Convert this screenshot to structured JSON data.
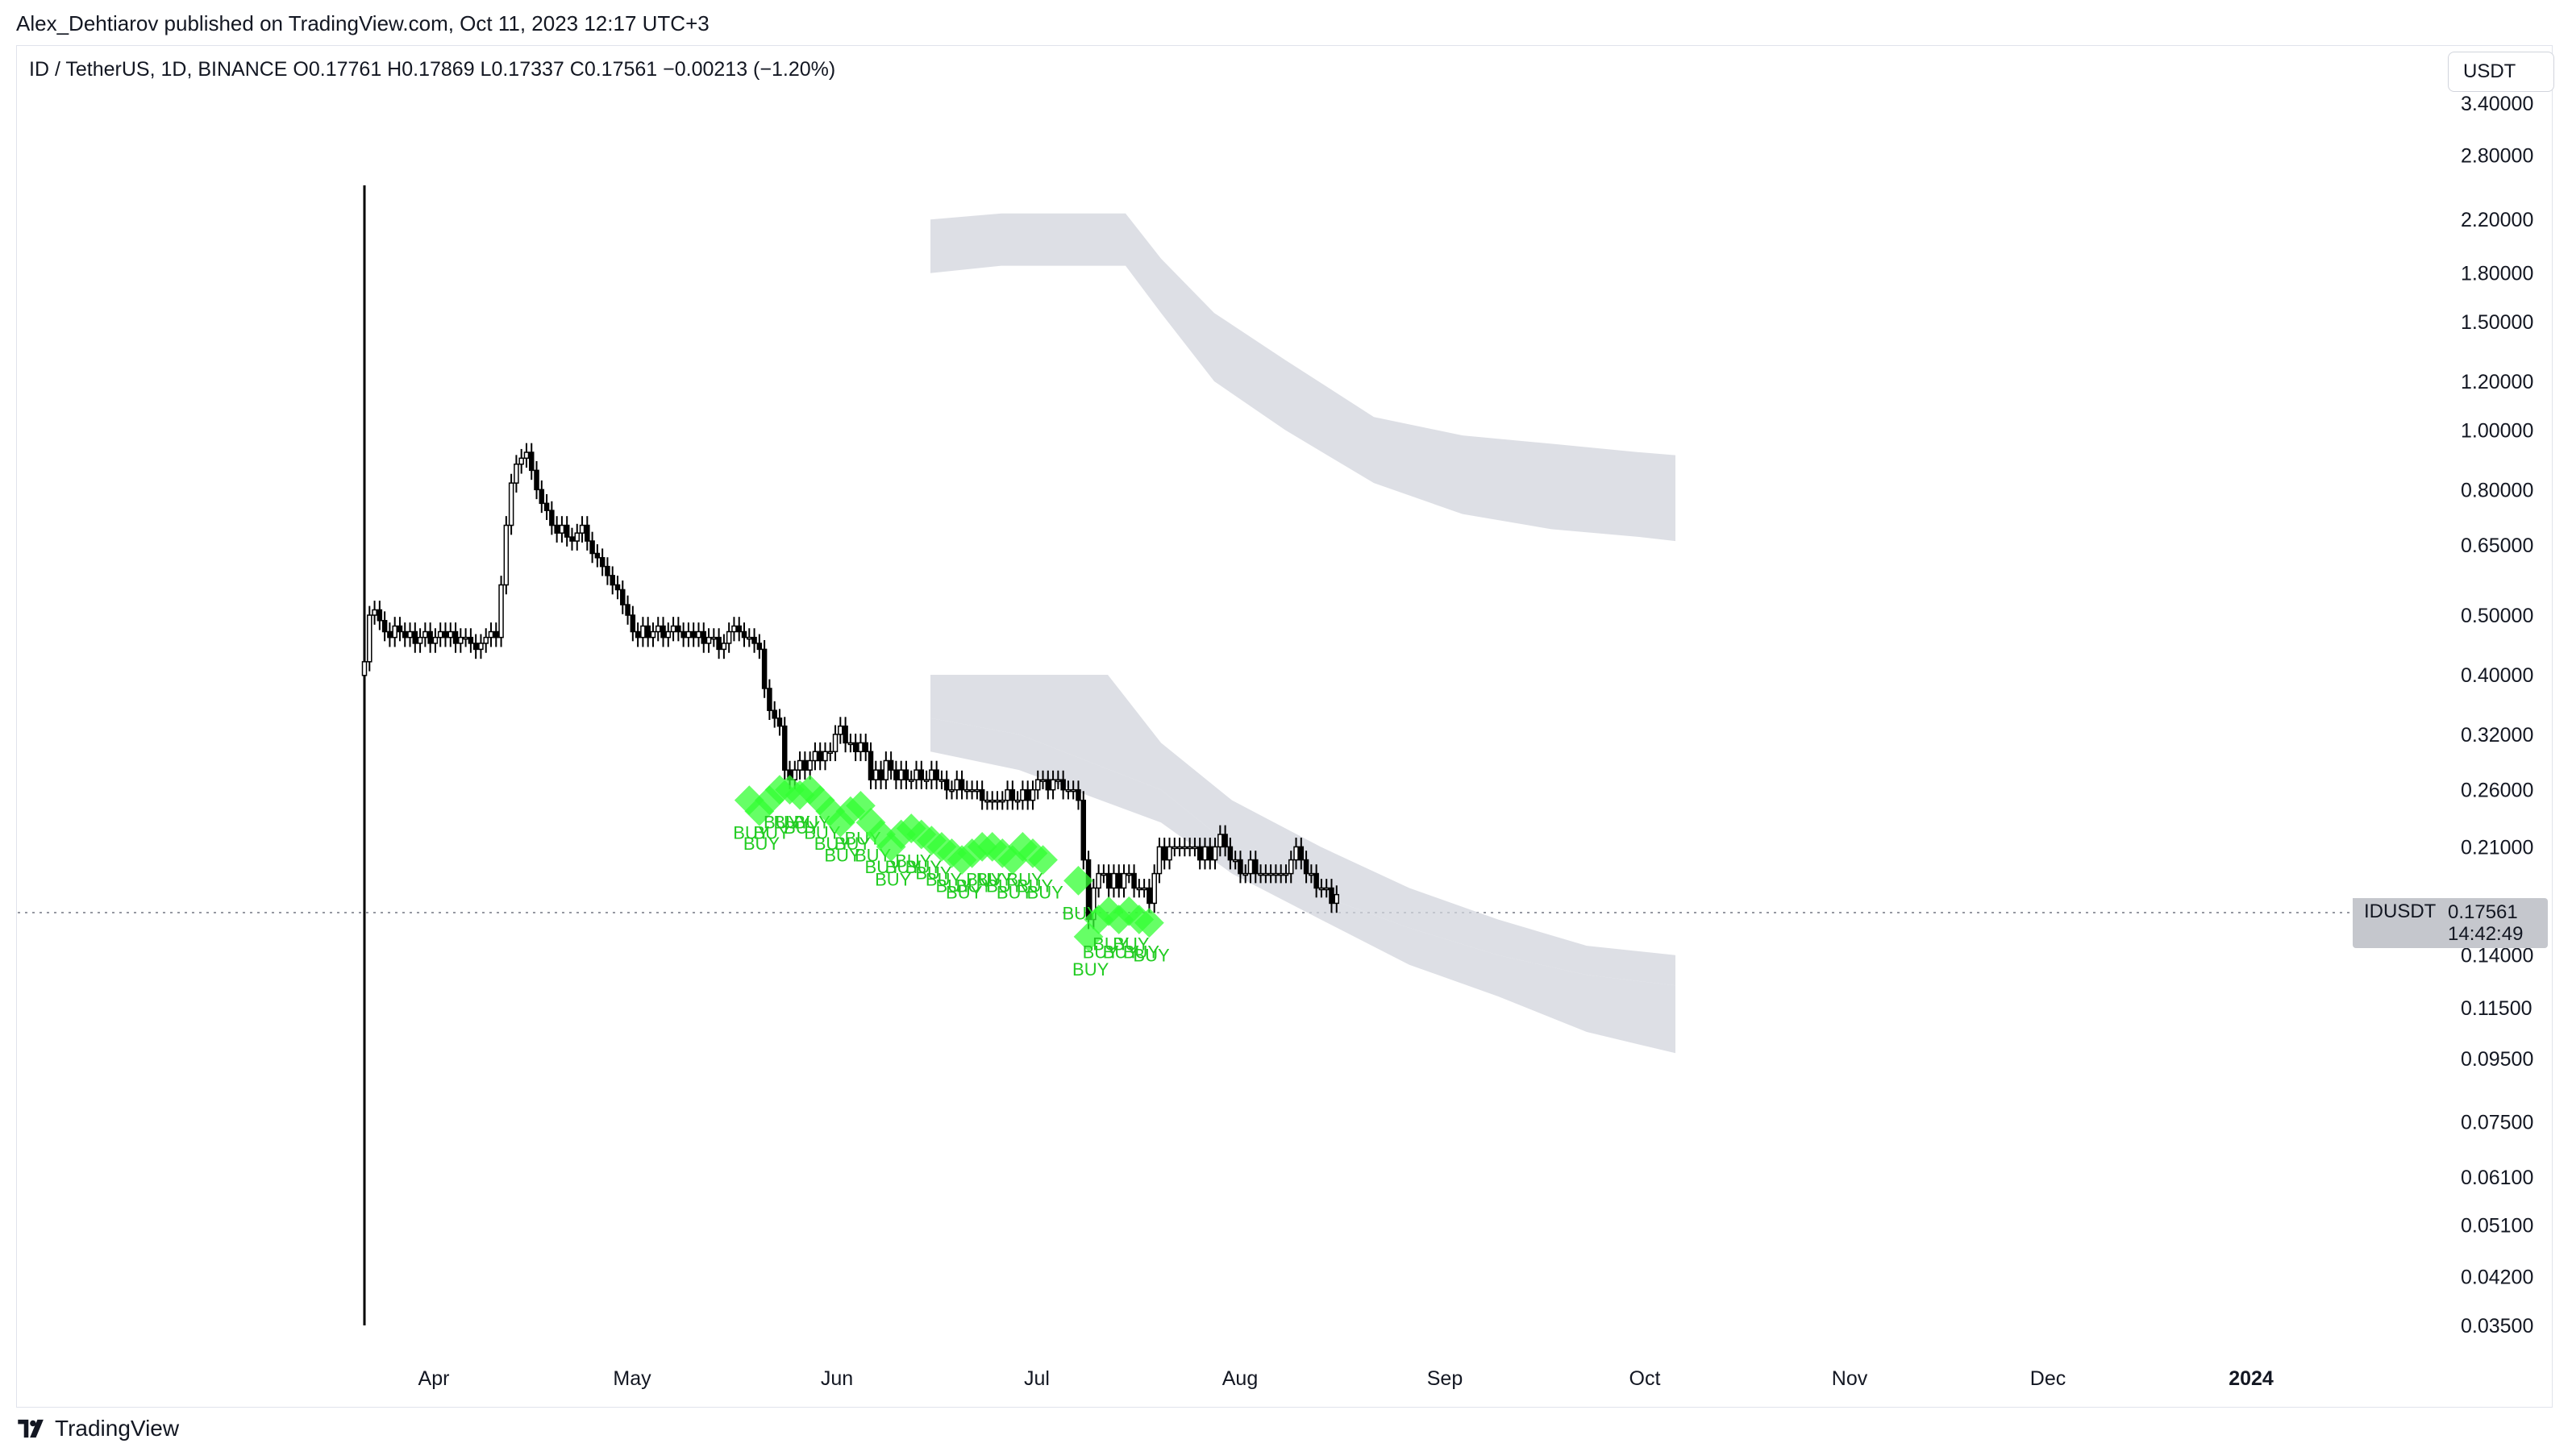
{
  "header": {
    "published": "Alex_Dehtiarov published on TradingView.com, Oct 11, 2023 12:17 UTC+3",
    "legend": "ID / TetherUS, 1D, BINANCE  O0.17761  H0.17869  L0.17337  C0.17561  −0.00213 (−1.20%)"
  },
  "currency_button": "USDT",
  "last_price": {
    "symbol": "IDUSDT",
    "price": "0.17561",
    "countdown": "14:42:49"
  },
  "footer": {
    "brand": "TradingView"
  },
  "colors": {
    "candle": "#000000",
    "band": "#d1d4dc",
    "buy_marker": "#33ff33",
    "buy_text": "#22cc22",
    "axis_text": "#131722"
  },
  "chart_data": {
    "type": "candlestick",
    "y_scale": "log",
    "y_ticks": [
      "3.40000",
      "2.80000",
      "2.20000",
      "1.80000",
      "1.50000",
      "1.20000",
      "1.00000",
      "0.80000",
      "0.65000",
      "0.50000",
      "0.40000",
      "0.32000",
      "0.26000",
      "0.21000",
      "0.14000",
      "0.11500",
      "0.09500",
      "0.07500",
      "0.06100",
      "0.05100",
      "0.04200",
      "0.03500"
    ],
    "x_ticks": [
      "Apr",
      "May",
      "Jun",
      "Jul",
      "Aug",
      "Sep",
      "Oct",
      "Nov",
      "Dec",
      "2024"
    ],
    "ylim": [
      0.035,
      3.4
    ],
    "close_path": [
      [
        0,
        0.42
      ],
      [
        1,
        0.5
      ],
      [
        2,
        0.51
      ],
      [
        3,
        0.49
      ],
      [
        4,
        0.47
      ],
      [
        5,
        0.46
      ],
      [
        6,
        0.48
      ],
      [
        7,
        0.47
      ],
      [
        8,
        0.46
      ],
      [
        9,
        0.47
      ],
      [
        10,
        0.45
      ],
      [
        11,
        0.46
      ],
      [
        12,
        0.47
      ],
      [
        13,
        0.45
      ],
      [
        14,
        0.46
      ],
      [
        15,
        0.47
      ],
      [
        16,
        0.46
      ],
      [
        17,
        0.47
      ],
      [
        18,
        0.45
      ],
      [
        19,
        0.46
      ],
      [
        20,
        0.46
      ],
      [
        21,
        0.45
      ],
      [
        22,
        0.44
      ],
      [
        23,
        0.45
      ],
      [
        24,
        0.46
      ],
      [
        25,
        0.47
      ],
      [
        26,
        0.46
      ],
      [
        27,
        0.56
      ],
      [
        28,
        0.7
      ],
      [
        29,
        0.82
      ],
      [
        30,
        0.88
      ],
      [
        31,
        0.9
      ],
      [
        32,
        0.92
      ],
      [
        33,
        0.86
      ],
      [
        34,
        0.8
      ],
      [
        35,
        0.76
      ],
      [
        36,
        0.74
      ],
      [
        37,
        0.7
      ],
      [
        38,
        0.68
      ],
      [
        39,
        0.7
      ],
      [
        40,
        0.67
      ],
      [
        41,
        0.66
      ],
      [
        42,
        0.68
      ],
      [
        43,
        0.7
      ],
      [
        44,
        0.66
      ],
      [
        45,
        0.63
      ],
      [
        46,
        0.62
      ],
      [
        47,
        0.6
      ],
      [
        48,
        0.58
      ],
      [
        49,
        0.56
      ],
      [
        50,
        0.55
      ],
      [
        51,
        0.52
      ],
      [
        52,
        0.5
      ],
      [
        53,
        0.47
      ],
      [
        54,
        0.46
      ],
      [
        55,
        0.48
      ],
      [
        56,
        0.46
      ],
      [
        57,
        0.47
      ],
      [
        58,
        0.48
      ],
      [
        59,
        0.46
      ],
      [
        60,
        0.47
      ],
      [
        61,
        0.48
      ],
      [
        62,
        0.47
      ],
      [
        63,
        0.46
      ],
      [
        64,
        0.47
      ],
      [
        65,
        0.46
      ],
      [
        66,
        0.47
      ],
      [
        67,
        0.45
      ],
      [
        68,
        0.46
      ],
      [
        69,
        0.46
      ],
      [
        70,
        0.44
      ],
      [
        71,
        0.45
      ],
      [
        72,
        0.47
      ],
      [
        73,
        0.48
      ],
      [
        74,
        0.47
      ],
      [
        75,
        0.46
      ],
      [
        76,
        0.46
      ],
      [
        77,
        0.45
      ],
      [
        78,
        0.44
      ],
      [
        79,
        0.38
      ],
      [
        80,
        0.35
      ],
      [
        81,
        0.34
      ],
      [
        82,
        0.33
      ],
      [
        83,
        0.28
      ],
      [
        84,
        0.27
      ],
      [
        85,
        0.28
      ],
      [
        86,
        0.29
      ],
      [
        87,
        0.28
      ],
      [
        88,
        0.29
      ],
      [
        89,
        0.3
      ],
      [
        90,
        0.29
      ],
      [
        91,
        0.3
      ],
      [
        92,
        0.3
      ],
      [
        93,
        0.32
      ],
      [
        94,
        0.33
      ],
      [
        95,
        0.31
      ],
      [
        96,
        0.31
      ],
      [
        97,
        0.3
      ],
      [
        98,
        0.31
      ],
      [
        99,
        0.3
      ],
      [
        100,
        0.27
      ],
      [
        101,
        0.28
      ],
      [
        102,
        0.27
      ],
      [
        103,
        0.29
      ],
      [
        104,
        0.28
      ],
      [
        105,
        0.27
      ],
      [
        106,
        0.28
      ],
      [
        107,
        0.27
      ],
      [
        108,
        0.27
      ],
      [
        109,
        0.28
      ],
      [
        110,
        0.27
      ],
      [
        111,
        0.27
      ],
      [
        112,
        0.28
      ],
      [
        113,
        0.27
      ],
      [
        114,
        0.27
      ],
      [
        115,
        0.26
      ],
      [
        116,
        0.26
      ],
      [
        117,
        0.27
      ],
      [
        118,
        0.26
      ],
      [
        119,
        0.26
      ],
      [
        120,
        0.26
      ],
      [
        121,
        0.26
      ],
      [
        122,
        0.25
      ],
      [
        123,
        0.25
      ],
      [
        124,
        0.25
      ],
      [
        125,
        0.25
      ],
      [
        126,
        0.25
      ],
      [
        127,
        0.26
      ],
      [
        128,
        0.25
      ],
      [
        129,
        0.25
      ],
      [
        130,
        0.26
      ],
      [
        131,
        0.25
      ],
      [
        132,
        0.26
      ],
      [
        133,
        0.27
      ],
      [
        134,
        0.27
      ],
      [
        135,
        0.26
      ],
      [
        136,
        0.27
      ],
      [
        137,
        0.27
      ],
      [
        138,
        0.26
      ],
      [
        139,
        0.26
      ],
      [
        140,
        0.26
      ],
      [
        141,
        0.25
      ],
      [
        142,
        0.2
      ],
      [
        143,
        0.16
      ],
      [
        144,
        0.18
      ],
      [
        145,
        0.19
      ],
      [
        146,
        0.19
      ],
      [
        147,
        0.18
      ],
      [
        148,
        0.19
      ],
      [
        149,
        0.18
      ],
      [
        150,
        0.19
      ],
      [
        151,
        0.19
      ],
      [
        152,
        0.18
      ],
      [
        153,
        0.18
      ],
      [
        154,
        0.18
      ],
      [
        155,
        0.17
      ],
      [
        156,
        0.19
      ],
      [
        157,
        0.21
      ],
      [
        158,
        0.2
      ],
      [
        159,
        0.21
      ],
      [
        160,
        0.21
      ],
      [
        161,
        0.21
      ],
      [
        162,
        0.21
      ],
      [
        163,
        0.21
      ],
      [
        164,
        0.21
      ],
      [
        165,
        0.2
      ],
      [
        166,
        0.21
      ],
      [
        167,
        0.2
      ],
      [
        168,
        0.21
      ],
      [
        169,
        0.22
      ],
      [
        170,
        0.21
      ],
      [
        171,
        0.2
      ],
      [
        172,
        0.2
      ],
      [
        173,
        0.19
      ],
      [
        174,
        0.19
      ],
      [
        175,
        0.2
      ],
      [
        176,
        0.19
      ],
      [
        177,
        0.19
      ],
      [
        178,
        0.19
      ],
      [
        179,
        0.19
      ],
      [
        180,
        0.19
      ],
      [
        181,
        0.19
      ],
      [
        182,
        0.19
      ],
      [
        183,
        0.2
      ],
      [
        184,
        0.21
      ],
      [
        185,
        0.2
      ],
      [
        186,
        0.19
      ],
      [
        187,
        0.19
      ],
      [
        188,
        0.18
      ],
      [
        189,
        0.18
      ],
      [
        190,
        0.18
      ],
      [
        191,
        0.17
      ],
      [
        192,
        0.17561
      ]
    ],
    "first_day_spike": {
      "high": 2.5,
      "low": 0.035
    },
    "upper_band": {
      "top": [
        [
          0,
          2.2
        ],
        [
          8,
          2.25
        ],
        [
          22,
          2.25
        ],
        [
          26,
          1.9
        ],
        [
          32,
          1.55
        ],
        [
          40,
          1.3
        ],
        [
          50,
          1.05
        ],
        [
          60,
          0.98
        ],
        [
          70,
          0.95
        ],
        [
          80,
          0.92
        ],
        [
          84,
          0.91
        ]
      ],
      "bottom": [
        [
          0,
          1.8
        ],
        [
          8,
          1.85
        ],
        [
          22,
          1.85
        ],
        [
          26,
          1.55
        ],
        [
          32,
          1.2
        ],
        [
          40,
          1.0
        ],
        [
          50,
          0.82
        ],
        [
          60,
          0.73
        ],
        [
          70,
          0.69
        ],
        [
          80,
          0.67
        ],
        [
          84,
          0.66
        ]
      ]
    },
    "lower_band": {
      "top": [
        [
          0,
          0.4
        ],
        [
          8,
          0.4
        ],
        [
          20,
          0.4
        ],
        [
          26,
          0.31
        ],
        [
          34,
          0.25
        ],
        [
          44,
          0.21
        ],
        [
          54,
          0.18
        ],
        [
          64,
          0.16
        ],
        [
          74,
          0.145
        ],
        [
          84,
          0.14
        ]
      ],
      "middle": [
        [
          0,
          0.34
        ],
        [
          10,
          0.32
        ],
        [
          26,
          0.26
        ],
        [
          34,
          0.21
        ],
        [
          44,
          0.175
        ],
        [
          54,
          0.155
        ],
        [
          64,
          0.14
        ],
        [
          74,
          0.13
        ],
        [
          84,
          0.125
        ]
      ],
      "bottom": [
        [
          0,
          0.3
        ],
        [
          10,
          0.28
        ],
        [
          26,
          0.23
        ],
        [
          34,
          0.19
        ],
        [
          44,
          0.16
        ],
        [
          54,
          0.135
        ],
        [
          64,
          0.12
        ],
        [
          74,
          0.105
        ],
        [
          84,
          0.097
        ]
      ]
    },
    "buy_label": "BUY",
    "buy_signals": [
      [
        76,
        0.25
      ],
      [
        78,
        0.24
      ],
      [
        80,
        0.25
      ],
      [
        82,
        0.26
      ],
      [
        84,
        0.26
      ],
      [
        86,
        0.255
      ],
      [
        88,
        0.26
      ],
      [
        90,
        0.25
      ],
      [
        92,
        0.24
      ],
      [
        94,
        0.23
      ],
      [
        96,
        0.24
      ],
      [
        98,
        0.245
      ],
      [
        100,
        0.23
      ],
      [
        102,
        0.22
      ],
      [
        104,
        0.21
      ],
      [
        106,
        0.22
      ],
      [
        108,
        0.225
      ],
      [
        110,
        0.22
      ],
      [
        112,
        0.215
      ],
      [
        114,
        0.21
      ],
      [
        116,
        0.205
      ],
      [
        118,
        0.2
      ],
      [
        120,
        0.205
      ],
      [
        122,
        0.21
      ],
      [
        124,
        0.21
      ],
      [
        126,
        0.205
      ],
      [
        128,
        0.2
      ],
      [
        130,
        0.21
      ],
      [
        132,
        0.205
      ],
      [
        134,
        0.2
      ],
      [
        141,
        0.185
      ],
      [
        143,
        0.15
      ],
      [
        145,
        0.16
      ],
      [
        147,
        0.165
      ],
      [
        149,
        0.16
      ],
      [
        151,
        0.165
      ],
      [
        153,
        0.16
      ],
      [
        155,
        0.158
      ]
    ]
  }
}
